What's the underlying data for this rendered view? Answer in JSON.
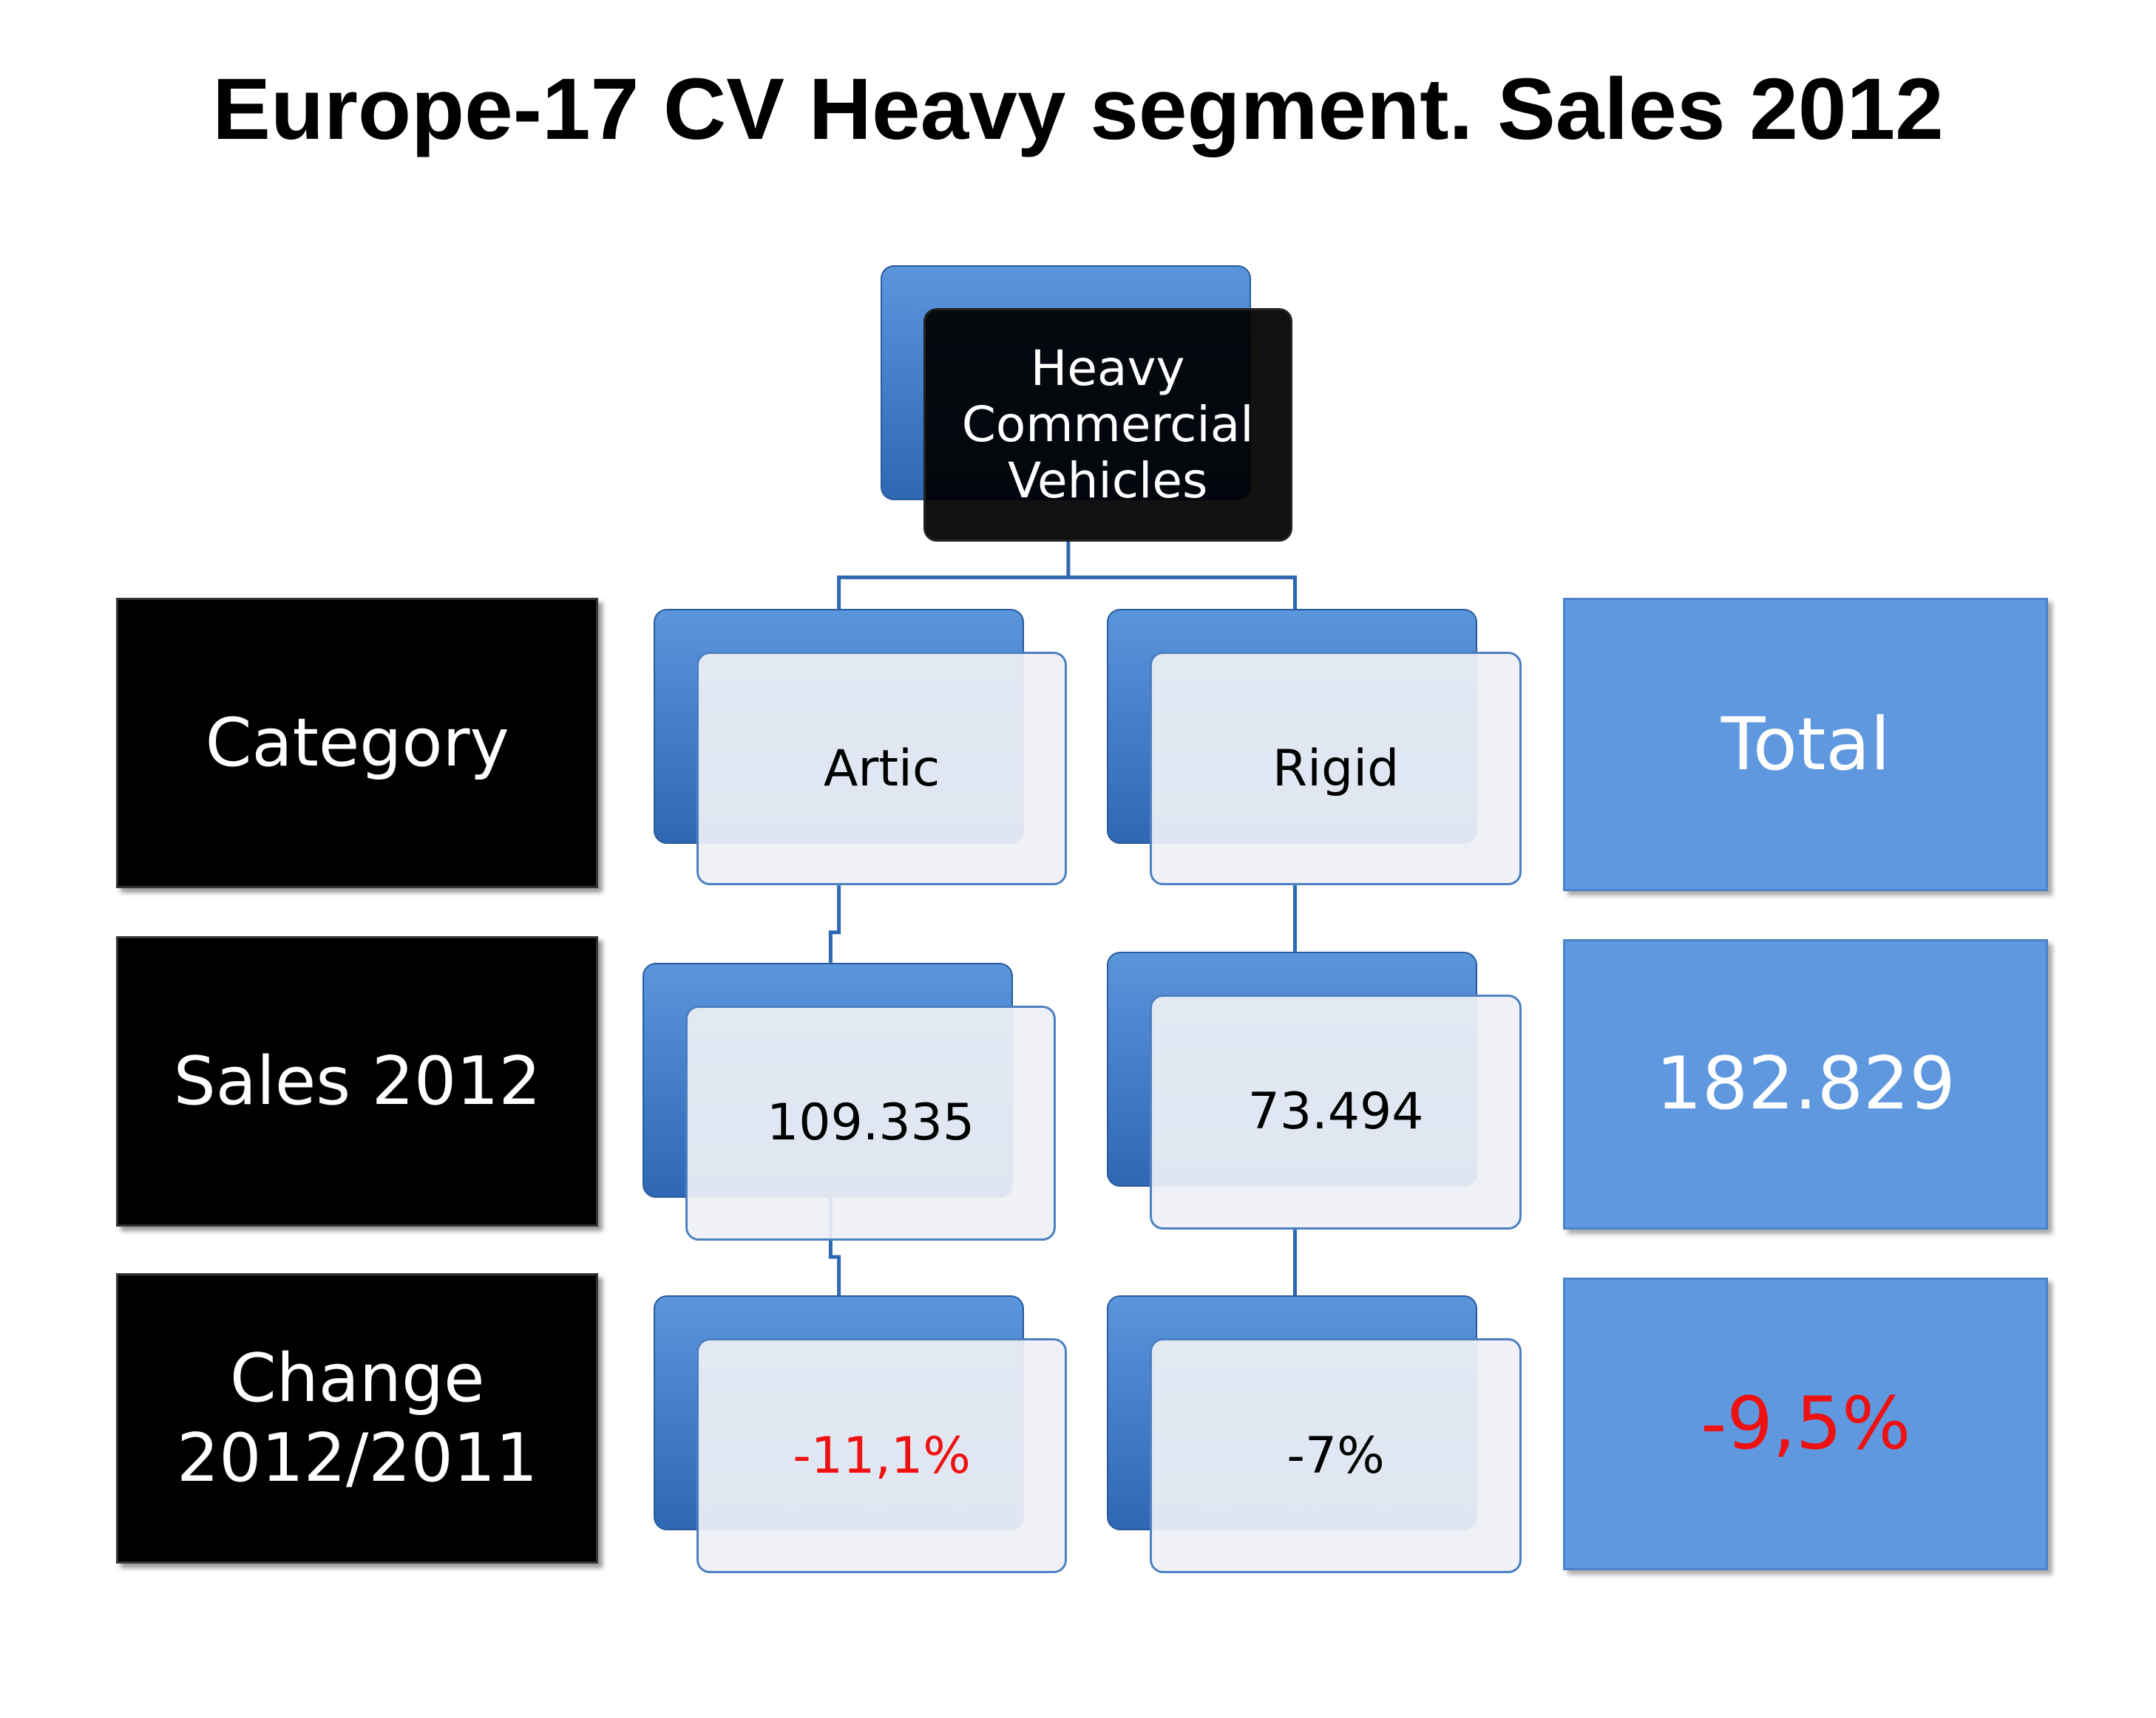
{
  "title": "Europe-17 CV Heavy segment. Sales 2012",
  "root": {
    "label": "Heavy Commercial Vehicles"
  },
  "row_labels": [
    "Category",
    "Sales 2012",
    "Change 2012/2011"
  ],
  "columns": [
    {
      "category": "Artic",
      "sales": "109.335",
      "change": "-11,1%"
    },
    {
      "category": "Rigid",
      "sales": "73.494",
      "change": "-7%"
    }
  ],
  "total": {
    "category": "Total",
    "sales": "182.829",
    "change": "-9,5%"
  }
}
